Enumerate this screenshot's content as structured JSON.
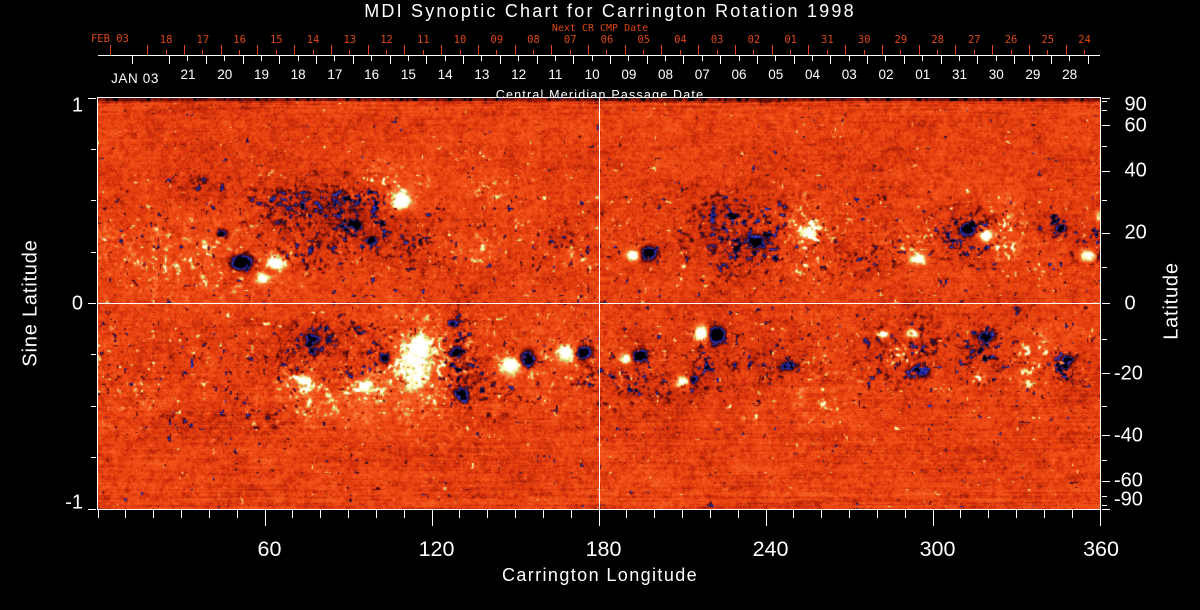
{
  "title": "MDI Synoptic Chart for Carrington Rotation 1998",
  "colors": {
    "background": "#000000",
    "foreground": "#ffffff",
    "date_axis_red": "#dd4512",
    "base_orange": "#e43e0e",
    "negative_polarity_blue": "#3a48e1",
    "positive_polarity_white": "#ffffff"
  },
  "next_cr_axis": {
    "label": "Next CR CMP Date",
    "month_label": "FEB 03",
    "month_label_lon": 4.3,
    "day_labels": [
      "18",
      "17",
      "16",
      "15",
      "14",
      "13",
      "12",
      "11",
      "10",
      "09",
      "08",
      "07",
      "06",
      "05",
      "04",
      "03",
      "02",
      "01",
      "31",
      "30",
      "29",
      "28",
      "27",
      "26",
      "25",
      "24"
    ],
    "first_day_lon": 24.47,
    "day_step_lon": 13.199,
    "midnight_first_lon": 4.64,
    "midnight_count": 27
  },
  "cmp_axis": {
    "title": "Central Meridian Passage Date",
    "month_label": "JAN 03",
    "month_label_lon": 13.3,
    "day_labels": [
      "21",
      "20",
      "19",
      "18",
      "17",
      "16",
      "15",
      "14",
      "13",
      "12",
      "11",
      "10",
      "09",
      "08",
      "07",
      "06",
      "05",
      "04",
      "03",
      "02",
      "01",
      "31",
      "30",
      "29",
      "28"
    ],
    "first_day_lon": 32.33,
    "day_step_lon": 13.199,
    "midnight_first_lon": 12.54,
    "midnight_count": 27
  },
  "x_axis": {
    "title": "Carrington Longitude",
    "range": [
      0,
      360
    ],
    "major_ticks": [
      60,
      120,
      180,
      240,
      300,
      360
    ],
    "minor_step": 10
  },
  "y_axis_left": {
    "title": "Sine Latitude",
    "range": [
      -1,
      1
    ],
    "major_ticks": [
      "1",
      "0",
      "-1"
    ],
    "minor_step": 0.25
  },
  "y_axis_right": {
    "title": "Latitude",
    "major_ticks": [
      "90",
      "60",
      "40",
      "20",
      "0",
      "-20",
      "-40",
      "-60",
      "-90"
    ],
    "minor_ticks": [
      80,
      70,
      50,
      30,
      10,
      -10,
      -30,
      -50,
      -70,
      -80
    ]
  },
  "reference_lines": {
    "longitude": 180,
    "sine_latitude": 0
  },
  "chart_data": {
    "type": "heatmap",
    "title": "MDI Synoptic Chart for Carrington Rotation 1998",
    "carrington_rotation": 1998,
    "x_label": "Carrington Longitude",
    "x_range_deg": [
      0,
      360
    ],
    "y_label_left": "Sine Latitude",
    "y_range_sine_latitude": [
      -1,
      1
    ],
    "y_label_right": "Latitude",
    "palette_stops": [
      [
        -1.3,
        [
          0,
          0,
          0
        ]
      ],
      [
        -1.0,
        [
          0,
          0,
          0
        ]
      ],
      [
        -0.86,
        [
          4,
          5,
          45
        ]
      ],
      [
        -0.74,
        [
          20,
          26,
          140
        ]
      ],
      [
        -0.62,
        [
          55,
          70,
          220
        ]
      ],
      [
        -0.54,
        [
          55,
          30,
          105
        ]
      ],
      [
        -0.46,
        [
          45,
          12,
          35
        ]
      ],
      [
        -0.36,
        [
          80,
          12,
          10
        ]
      ],
      [
        -0.26,
        [
          142,
          24,
          8
        ]
      ],
      [
        -0.16,
        [
          190,
          40,
          10
        ]
      ],
      [
        -0.07,
        [
          215,
          52,
          12
        ]
      ],
      [
        0.0,
        [
          230,
          64,
          15
        ]
      ],
      [
        0.08,
        [
          240,
          78,
          22
        ]
      ],
      [
        0.17,
        [
          245,
          94,
          34
        ]
      ],
      [
        0.27,
        [
          248,
          112,
          48
        ]
      ],
      [
        0.36,
        [
          250,
          140,
          82
        ]
      ],
      [
        0.42,
        [
          225,
          175,
          95
        ]
      ],
      [
        0.455,
        [
          165,
          198,
          88
        ]
      ],
      [
        0.49,
        [
          228,
          225,
          128
        ]
      ],
      [
        0.58,
        [
          252,
          242,
          155
        ]
      ],
      [
        0.72,
        [
          255,
          251,
          205
        ]
      ],
      [
        0.88,
        [
          255,
          255,
          255
        ]
      ],
      [
        1.6,
        [
          255,
          255,
          255
        ]
      ]
    ],
    "activity_belts_sine_latitude": [
      0.38,
      -0.28
    ],
    "active_regions": [
      [
        69.0,
        0.479,
        19.8,
        0.122,
        -0.55,
        "c"
      ],
      [
        94.9,
        0.416,
        10.8,
        0.161,
        -1.25,
        "c"
      ],
      [
        92.3,
        0.382,
        2.9,
        0.029,
        -1.25,
        "s"
      ],
      [
        98.4,
        0.309,
        2.5,
        0.024,
        -1.2,
        "s"
      ],
      [
        104.9,
        0.586,
        11.5,
        0.088,
        0.85,
        "c"
      ],
      [
        140.8,
        0.577,
        9.3,
        0.073,
        0.5,
        "c"
      ],
      [
        108.5,
        0.504,
        5.0,
        0.058,
        1.45,
        "s"
      ],
      [
        51.4,
        0.202,
        5.4,
        0.053,
        -1.7,
        "s"
      ],
      [
        44.6,
        0.343,
        2.5,
        0.029,
        -1.2,
        "s"
      ],
      [
        64.0,
        0.202,
        4.3,
        0.044,
        1.55,
        "s"
      ],
      [
        58.9,
        0.124,
        3.6,
        0.034,
        1.25,
        "s"
      ],
      [
        36.6,
        0.187,
        30.5,
        0.17,
        0.5,
        "c"
      ],
      [
        72.6,
        0.26,
        14.4,
        0.122,
        -0.6,
        "c"
      ],
      [
        7.9,
        0.319,
        4.3,
        0.049,
        0.5,
        "c"
      ],
      [
        113.9,
        0.27,
        9.0,
        0.107,
        -0.65,
        "c"
      ],
      [
        133.7,
        0.26,
        10.1,
        0.088,
        0.45,
        "c"
      ],
      [
        166.0,
        0.328,
        4.7,
        0.058,
        -0.95,
        "c"
      ],
      [
        172.5,
        0.202,
        7.9,
        0.068,
        0.5,
        "c"
      ],
      [
        191.9,
        0.236,
        2.9,
        0.034,
        1.5,
        "s"
      ],
      [
        197.6,
        0.246,
        3.6,
        0.044,
        -1.65,
        "s"
      ],
      [
        210.2,
        0.182,
        1.4,
        0.015,
        0.95,
        "s"
      ],
      [
        232.5,
        0.324,
        17.2,
        0.195,
        -1.0,
        "c"
      ],
      [
        236.4,
        0.304,
        5.4,
        0.044,
        -1.1,
        "s"
      ],
      [
        221.0,
        0.455,
        6.5,
        0.068,
        -0.8,
        "c"
      ],
      [
        254.4,
        0.309,
        9.7,
        0.195,
        0.8,
        "c"
      ],
      [
        254.4,
        0.348,
        3.6,
        0.039,
        1.1,
        "s"
      ],
      [
        275.6,
        0.212,
        12.6,
        0.078,
        -0.6,
        "c"
      ],
      [
        280.2,
        0.533,
        5.0,
        0.039,
        -0.45,
        "c"
      ],
      [
        294.6,
        0.221,
        4.0,
        0.039,
        1.2,
        "s"
      ],
      [
        289.9,
        0.275,
        7.9,
        0.078,
        0.5,
        "c"
      ],
      [
        312.6,
        0.333,
        9.0,
        0.122,
        -1.0,
        "c"
      ],
      [
        312.2,
        0.363,
        3.6,
        0.039,
        -1.35,
        "s"
      ],
      [
        318.7,
        0.333,
        3.2,
        0.039,
        1.5,
        "s"
      ],
      [
        326.2,
        0.333,
        5.7,
        0.136,
        0.75,
        "c"
      ],
      [
        344.6,
        0.377,
        6.1,
        0.073,
        -1.15,
        "c"
      ],
      [
        345.6,
        0.367,
        2.2,
        0.024,
        -1.35,
        "s"
      ],
      [
        355.0,
        0.285,
        5.4,
        0.088,
        -1.1,
        "c"
      ],
      [
        355.3,
        0.236,
        3.6,
        0.039,
        1.25,
        "s"
      ],
      [
        359.3,
        0.426,
        1.8,
        0.034,
        0.9,
        "s"
      ],
      [
        1.8,
        0.309,
        3.2,
        0.073,
        0.5,
        "c"
      ],
      [
        38.4,
        0.572,
        10.8,
        0.049,
        -0.5,
        "c"
      ],
      [
        79.8,
        0.504,
        16.2,
        0.088,
        -0.55,
        "c"
      ],
      [
        76.2,
        -0.178,
        6.8,
        0.068,
        -1.1,
        "c"
      ],
      [
        76.9,
        -0.168,
        2.9,
        0.029,
        -1.15,
        "s"
      ],
      [
        73.7,
        -0.392,
        7.5,
        0.083,
        0.9,
        "c"
      ],
      [
        73.7,
        -0.372,
        3.2,
        0.034,
        1.15,
        "s"
      ],
      [
        92.3,
        -0.338,
        4.3,
        0.049,
        -1.1,
        "c"
      ],
      [
        96.6,
        -0.416,
        7.9,
        0.073,
        1.0,
        "c"
      ],
      [
        95.9,
        -0.397,
        3.6,
        0.039,
        1.2,
        "s"
      ],
      [
        114.3,
        -0.29,
        7.5,
        0.156,
        0.95,
        "s"
      ],
      [
        114.3,
        -0.29,
        10.8,
        0.214,
        0.85,
        "c"
      ],
      [
        115.7,
        -0.197,
        4.7,
        0.058,
        1.25,
        "s"
      ],
      [
        130.4,
        -0.265,
        4.7,
        0.195,
        -1.35,
        "c"
      ],
      [
        128.6,
        -0.236,
        3.2,
        0.034,
        -1.5,
        "s"
      ],
      [
        130.4,
        -0.44,
        3.2,
        0.039,
        -1.5,
        "s"
      ],
      [
        127.2,
        -0.095,
        2.5,
        0.024,
        -1.1,
        "s"
      ],
      [
        102.8,
        -0.26,
        2.2,
        0.044,
        -1.35,
        "s"
      ],
      [
        148.0,
        -0.304,
        5.0,
        0.054,
        1.35,
        "s"
      ],
      [
        154.1,
        -0.265,
        3.6,
        0.054,
        -1.55,
        "s"
      ],
      [
        168.1,
        -0.241,
        4.3,
        0.058,
        1.4,
        "s"
      ],
      [
        174.3,
        -0.236,
        3.6,
        0.049,
        -1.5,
        "s"
      ],
      [
        119.3,
        -0.333,
        30.5,
        0.253,
        0.45,
        "c"
      ],
      [
        166.0,
        -0.324,
        14.4,
        0.185,
        0.42,
        "c"
      ],
      [
        74.4,
        -0.479,
        18.0,
        0.136,
        0.4,
        "c"
      ],
      [
        90.5,
        -0.158,
        16.2,
        0.097,
        -0.58,
        "c"
      ],
      [
        137.2,
        -0.431,
        14.4,
        0.127,
        -0.52,
        "c"
      ],
      [
        187.5,
        -0.363,
        16.2,
        0.136,
        -0.62,
        "c"
      ],
      [
        189.3,
        -0.265,
        3.2,
        0.034,
        1.3,
        "s"
      ],
      [
        194.4,
        -0.255,
        3.6,
        0.039,
        -1.5,
        "s"
      ],
      [
        216.6,
        -0.144,
        3.6,
        0.049,
        1.5,
        "s"
      ],
      [
        222.0,
        -0.148,
        4.0,
        0.054,
        -1.6,
        "s"
      ],
      [
        218.4,
        -0.265,
        5.0,
        0.088,
        -0.8,
        "c"
      ],
      [
        208.4,
        -0.411,
        8.6,
        0.068,
        -0.6,
        "c"
      ],
      [
        209.5,
        -0.382,
        3.6,
        0.039,
        1.3,
        "s"
      ],
      [
        213.8,
        -0.372,
        2.2,
        0.024,
        -1.15,
        "s"
      ],
      [
        241.4,
        -0.285,
        16.2,
        0.088,
        -0.68,
        "c"
      ],
      [
        247.9,
        -0.304,
        4.3,
        0.034,
        -0.9,
        "s"
      ],
      [
        263.7,
        -0.45,
        12.9,
        0.136,
        0.5,
        "c"
      ],
      [
        235.0,
        -0.543,
        3.6,
        0.029,
        0.6,
        "c"
      ],
      [
        281.7,
        -0.148,
        2.9,
        0.029,
        1.3,
        "s"
      ],
      [
        292.5,
        -0.144,
        2.9,
        0.029,
        1.4,
        "s"
      ],
      [
        287.4,
        -0.26,
        5.4,
        0.054,
        0.75,
        "c"
      ],
      [
        287.1,
        -0.226,
        11.5,
        0.141,
        -0.9,
        "c"
      ],
      [
        295.3,
        -0.324,
        4.3,
        0.039,
        -1.25,
        "s"
      ],
      [
        318.0,
        -0.217,
        9.0,
        0.122,
        -0.95,
        "c"
      ],
      [
        318.7,
        -0.158,
        4.0,
        0.034,
        -1.2,
        "s"
      ],
      [
        315.8,
        -0.358,
        3.6,
        0.039,
        0.8,
        "c"
      ],
      [
        336.6,
        -0.29,
        6.1,
        0.122,
        1.0,
        "c"
      ],
      [
        346.7,
        -0.304,
        6.5,
        0.078,
        -0.95,
        "c"
      ],
      [
        347.8,
        -0.275,
        2.9,
        0.029,
        -1.2,
        "s"
      ],
      [
        31.3,
        -0.552,
        9.0,
        0.058,
        -0.42,
        "c"
      ],
      [
        56.4,
        -0.543,
        12.6,
        0.073,
        -0.38,
        "c"
      ],
      [
        66.1,
        -0.285,
        10.1,
        0.078,
        -0.56,
        "c"
      ],
      [
        11.5,
        -0.47,
        12.6,
        0.156,
        0.3,
        "c"
      ]
    ]
  }
}
